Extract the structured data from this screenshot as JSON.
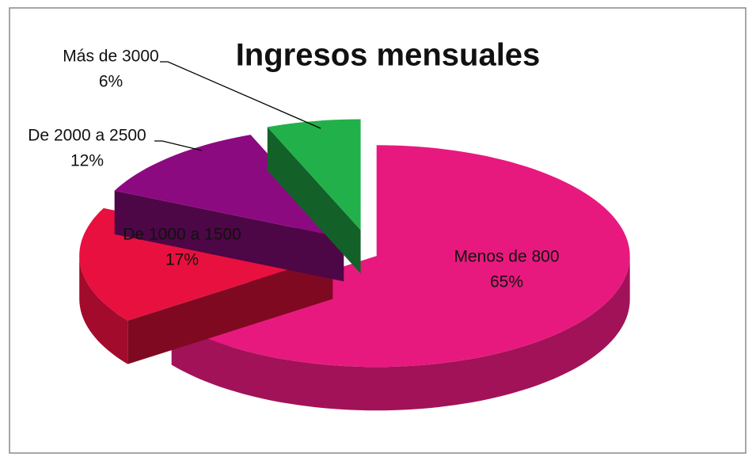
{
  "chart_data": {
    "type": "pie",
    "title": "Ingresos mensuales",
    "categories": [
      "Menos de 800",
      "De 1000 a 1500",
      "De 2000 a 2500",
      "Más de 3000"
    ],
    "values": [
      65,
      17,
      12,
      6
    ],
    "value_labels": [
      "65%",
      "17%",
      "12%",
      "6%"
    ],
    "colors": [
      "#e8197e",
      "#e8103e",
      "#8c0a80",
      "#22b04a"
    ],
    "three_d": true,
    "exploded": true
  }
}
